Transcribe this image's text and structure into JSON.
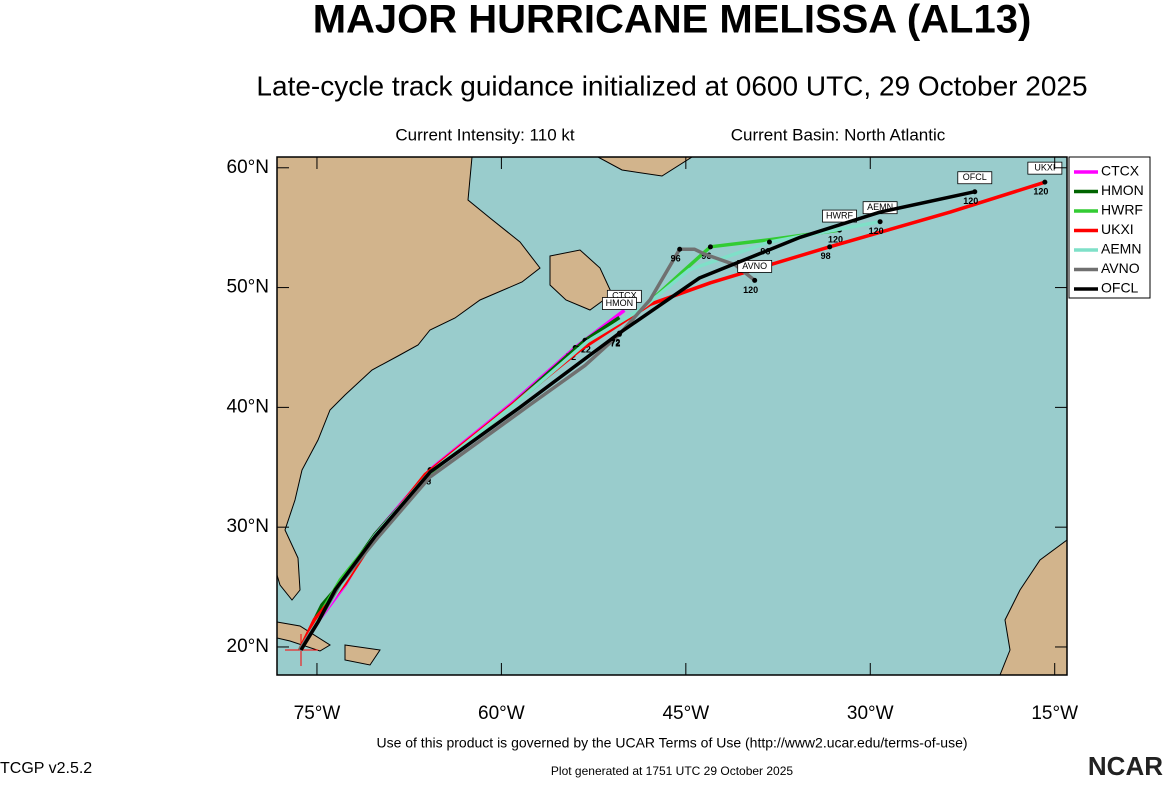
{
  "header": {
    "title": "MAJOR HURRICANE MELISSA (AL13)",
    "subtitle": "Late-cycle track guidance initialized at 0600 UTC, 29 October 2025",
    "intensity": "Current Intensity: 110 kt",
    "basin": "Current Basin: North Atlantic"
  },
  "map": {
    "xlim": [
      -78.25,
      -14.0
    ],
    "ylim": [
      17.66,
      60.9
    ],
    "xticks": [
      {
        "value": -75,
        "label": "75°W"
      },
      {
        "value": -60,
        "label": "60°W"
      },
      {
        "value": -45,
        "label": "45°W"
      },
      {
        "value": -30,
        "label": "30°W"
      },
      {
        "value": -15,
        "label": "15°W"
      }
    ],
    "yticks": [
      {
        "value": 20,
        "label": "20°N"
      },
      {
        "value": 30,
        "label": "30°N"
      },
      {
        "value": 40,
        "label": "40°N"
      },
      {
        "value": 50,
        "label": "50°N"
      },
      {
        "value": 60,
        "label": "60°N"
      }
    ],
    "series": [
      {
        "name": "CTCX",
        "color": "#ff00ff",
        "lon": [
          -76.4,
          -74.8,
          -72.7,
          -70.3,
          -65.8,
          -59.3,
          -54.0,
          -50.0
        ],
        "lat": [
          19.75,
          22.3,
          25.2,
          29.4,
          34.8,
          40.2,
          45.0,
          48.1
        ],
        "hours": [
          null,
          null,
          null,
          null,
          48,
          null,
          72,
          null
        ]
      },
      {
        "name": "HMON",
        "color": "#006400",
        "lon": [
          -76.4,
          -74.6,
          -73.1,
          -70.3,
          -65.8,
          -58.9,
          -53.2,
          -50.4
        ],
        "lat": [
          19.75,
          23.5,
          25.3,
          29.4,
          34.6,
          40.4,
          45.6,
          47.5
        ],
        "hours": [
          null,
          null,
          null,
          null,
          48,
          null,
          72,
          null
        ]
      },
      {
        "name": "HWRF",
        "color": "#33cc33",
        "lon": [
          -76.4,
          -75.0,
          -73.1,
          -70.3,
          -65.8,
          -58.9,
          -52.8,
          -48.7,
          -45.5,
          -43.0,
          -38.2,
          -32.5
        ],
        "lat": [
          19.75,
          22.3,
          25.6,
          29.2,
          34.5,
          40.3,
          45.6,
          48.1,
          51.1,
          53.4,
          54.0,
          54.8
        ],
        "hours": [
          null,
          null,
          null,
          null,
          null,
          null,
          72,
          null,
          null,
          96,
          null,
          120
        ]
      },
      {
        "name": "UKXI",
        "color": "#ff0000",
        "lon": [
          -76.4,
          -75.2,
          -72.7,
          -70.3,
          -66.2,
          -60.1,
          -53.6,
          -47.9,
          -43.0,
          -33.3,
          -23.5,
          -15.8
        ],
        "lat": [
          19.75,
          22.3,
          25.3,
          29.1,
          34.4,
          39.4,
          44.8,
          48.6,
          50.4,
          53.4,
          56.3,
          58.8
        ],
        "hours": [
          null,
          null,
          null,
          null,
          null,
          null,
          null,
          null,
          null,
          98,
          null,
          120
        ]
      },
      {
        "name": "AEMN",
        "color": "#7fe0c8",
        "lon": [
          -76.4,
          -74.9,
          -72.9,
          -70.3,
          -65.9,
          -59.0,
          -53.0,
          -48.5,
          -44.7,
          -38.2,
          -29.2
        ],
        "lat": [
          19.75,
          22.2,
          25.3,
          29.3,
          34.5,
          40.2,
          45.5,
          48.3,
          51.5,
          53.8,
          55.5
        ],
        "hours": [
          null,
          null,
          null,
          null,
          null,
          null,
          null,
          null,
          null,
          96,
          120
        ]
      },
      {
        "name": "AVNO",
        "color": "#707070",
        "lon": [
          -76.4,
          -74.9,
          -73.1,
          -70.0,
          -65.8,
          -57.7,
          -53.2,
          -50.4,
          -47.9,
          -45.5,
          -44.3,
          -43.5,
          -41.0,
          -39.4
        ],
        "lat": [
          19.75,
          22.1,
          25.3,
          29.2,
          34.2,
          40.2,
          43.5,
          46.1,
          49.0,
          53.2,
          53.2,
          52.8,
          51.9,
          50.6
        ],
        "hours": [
          null,
          null,
          null,
          null,
          null,
          null,
          null,
          72,
          null,
          96,
          null,
          null,
          null,
          120
        ]
      },
      {
        "name": "OFCL",
        "color": "#000000",
        "lon": [
          -76.3,
          -74.9,
          -73.5,
          -70.3,
          -65.8,
          -58.5,
          -50.4,
          -43.9,
          -35.7,
          -29.2,
          -21.5
        ],
        "lat": [
          19.75,
          22.1,
          24.8,
          29.2,
          34.6,
          40.0,
          46.2,
          50.8,
          54.2,
          56.3,
          58.0
        ],
        "hours": [
          null,
          null,
          null,
          null,
          null,
          null,
          72,
          null,
          null,
          null,
          120
        ]
      }
    ]
  },
  "footer": {
    "terms": "Use of this product is governed by the UCAR Terms of Use (http://www2.ucar.edu/terms-of-use)",
    "version": "TCGP v2.5.2",
    "generated": "Plot generated at 1751 UTC  29 October 2025",
    "logo": "NCAR"
  }
}
